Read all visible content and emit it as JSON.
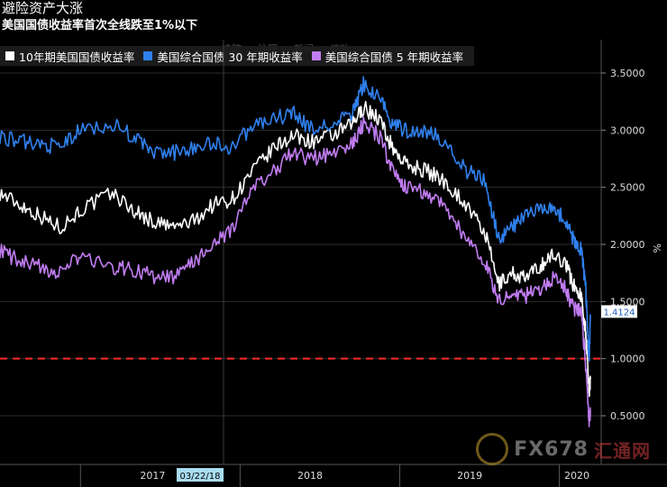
{
  "title": "避险资产大涨",
  "subtitle": "美国国债收益率首次全线跌至1%以下",
  "toolbar_ghost": [
    "追踪",
    "注释",
    "新闻",
    "缩放"
  ],
  "legend": [
    {
      "label": "10年期美国国债收益率",
      "color": "#ffffff"
    },
    {
      "label": "美国综合国债 30 年期收益率",
      "color": "#2f80ed"
    },
    {
      "label": "美国综合国债 5 年期收益率",
      "color": "#c07cf0"
    }
  ],
  "watermark": {
    "text": "FX678",
    "cn": "汇通网"
  },
  "chart_data": {
    "type": "line",
    "x_ticks": [
      "2017",
      "2018",
      "2019",
      "2020"
    ],
    "highlight_date": "03/22/18",
    "ylabel": "%",
    "ylim": [
      0.35,
      3.65
    ],
    "y_ticks": [
      "3.5000",
      "3.0000",
      "2.5000",
      "2.0000",
      "1.5000",
      "1.0000",
      "0.5000"
    ],
    "y_tick_values": [
      3.5,
      3.0,
      2.5,
      2.0,
      1.5,
      1.0,
      0.5
    ],
    "last_value_label": "1.4124",
    "last_value": 1.4124,
    "reference_line": {
      "value": 1.0,
      "color": "#ff2a2a",
      "style": "dashed"
    },
    "x_range": [
      "2016-07-01",
      "2020-03-12"
    ],
    "series": [
      {
        "name": "10年期美国国债收益率",
        "color": "#ffffff",
        "x": [
          "2016-07-01",
          "2016-08-15",
          "2016-10-01",
          "2016-11-15",
          "2017-01-01",
          "2017-03-15",
          "2017-05-01",
          "2017-06-15",
          "2017-08-01",
          "2017-09-15",
          "2017-11-01",
          "2017-12-15",
          "2018-02-01",
          "2018-03-22",
          "2018-05-01",
          "2018-06-15",
          "2018-08-01",
          "2018-09-15",
          "2018-10-10",
          "2018-11-15",
          "2018-12-15",
          "2019-01-15",
          "2019-03-01",
          "2019-04-15",
          "2019-06-01",
          "2019-07-15",
          "2019-08-15",
          "2019-09-15",
          "2019-10-15",
          "2019-11-15",
          "2019-12-15",
          "2020-01-15",
          "2020-02-01",
          "2020-02-20",
          "2020-03-01",
          "2020-03-09",
          "2020-03-12"
        ],
        "values": [
          2.45,
          2.35,
          2.25,
          2.15,
          2.3,
          2.45,
          2.3,
          2.2,
          2.15,
          2.2,
          2.35,
          2.4,
          2.65,
          2.85,
          2.95,
          2.9,
          2.95,
          3.05,
          3.2,
          3.1,
          2.85,
          2.7,
          2.65,
          2.55,
          2.35,
          2.1,
          1.65,
          1.75,
          1.7,
          1.8,
          1.9,
          1.85,
          1.65,
          1.55,
          1.25,
          0.7,
          0.82
        ]
      },
      {
        "name": "美国综合国债 30 年期收益率",
        "color": "#2f80ed",
        "x": [
          "2016-07-01",
          "2016-08-15",
          "2016-10-01",
          "2016-11-15",
          "2017-01-01",
          "2017-03-15",
          "2017-05-01",
          "2017-06-15",
          "2017-08-01",
          "2017-09-15",
          "2017-11-01",
          "2017-12-15",
          "2018-02-01",
          "2018-03-22",
          "2018-05-01",
          "2018-06-15",
          "2018-08-01",
          "2018-09-15",
          "2018-10-10",
          "2018-11-15",
          "2018-12-15",
          "2019-01-15",
          "2019-03-01",
          "2019-04-15",
          "2019-06-01",
          "2019-07-15",
          "2019-08-15",
          "2019-09-15",
          "2019-10-15",
          "2019-11-15",
          "2019-12-15",
          "2020-01-15",
          "2020-02-01",
          "2020-02-20",
          "2020-03-01",
          "2020-03-09",
          "2020-03-12"
        ],
        "values": [
          2.95,
          2.9,
          2.88,
          2.85,
          3.0,
          3.05,
          2.95,
          2.8,
          2.8,
          2.85,
          2.88,
          2.85,
          3.05,
          3.1,
          3.15,
          3.0,
          3.05,
          3.15,
          3.4,
          3.3,
          3.05,
          3.0,
          3.0,
          2.9,
          2.65,
          2.55,
          2.05,
          2.15,
          2.25,
          2.3,
          2.35,
          2.2,
          2.05,
          1.95,
          1.65,
          1.0,
          1.35
        ]
      },
      {
        "name": "美国综合国债 5 年期收益率",
        "color": "#c07cf0",
        "x": [
          "2016-07-01",
          "2016-08-15",
          "2016-10-01",
          "2016-11-15",
          "2017-01-01",
          "2017-03-15",
          "2017-05-01",
          "2017-06-15",
          "2017-08-01",
          "2017-09-15",
          "2017-11-01",
          "2017-12-15",
          "2018-02-01",
          "2018-03-22",
          "2018-05-01",
          "2018-06-15",
          "2018-08-01",
          "2018-09-15",
          "2018-10-10",
          "2018-11-15",
          "2018-12-15",
          "2019-01-15",
          "2019-03-01",
          "2019-04-15",
          "2019-06-01",
          "2019-07-15",
          "2019-08-15",
          "2019-09-15",
          "2019-10-15",
          "2019-11-15",
          "2019-12-15",
          "2020-01-15",
          "2020-02-01",
          "2020-02-20",
          "2020-03-01",
          "2020-03-09",
          "2020-03-12"
        ],
        "values": [
          1.95,
          1.85,
          1.8,
          1.75,
          1.9,
          1.8,
          1.78,
          1.72,
          1.7,
          1.85,
          1.98,
          2.15,
          2.5,
          2.65,
          2.8,
          2.75,
          2.8,
          2.88,
          3.05,
          2.95,
          2.65,
          2.5,
          2.45,
          2.35,
          2.05,
          1.85,
          1.5,
          1.55,
          1.55,
          1.6,
          1.7,
          1.62,
          1.45,
          1.4,
          0.95,
          0.45,
          0.55
        ]
      }
    ]
  }
}
